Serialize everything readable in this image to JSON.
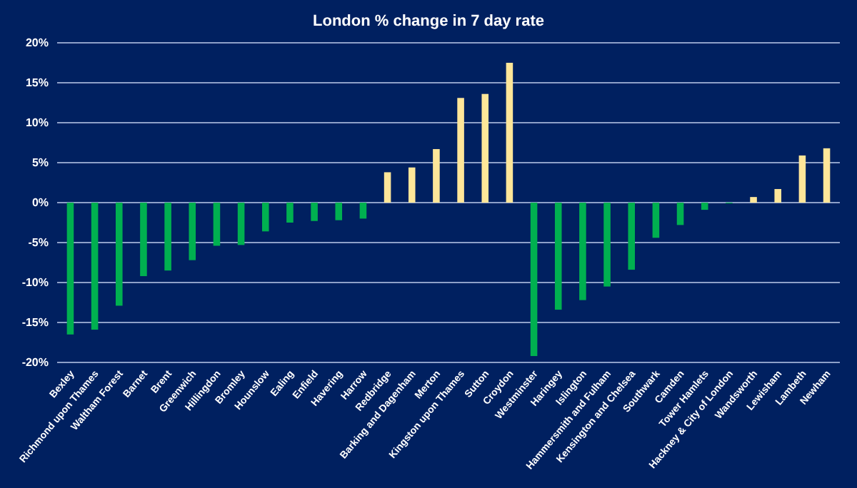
{
  "chart_data": {
    "type": "bar",
    "title": "London % change in 7 day rate",
    "categories": [
      "Bexley",
      "Richmond upon Thames",
      "Waltham Forest",
      "Barnet",
      "Brent",
      "Greenwich",
      "Hillingdon",
      "Bromley",
      "Hounslow",
      "Ealing",
      "Enfield",
      "Havering",
      "Harrow",
      "Redbridge",
      "Barking and Dagenham",
      "Merton",
      "Kingston upon Thames",
      "Sutton",
      "Croydon",
      "Westminster",
      "Haringey",
      "Islington",
      "Hammersmith and Fulham",
      "Kensington and Chelsea",
      "Southwark",
      "Camden",
      "Tower Hamlets",
      "Hackney & City of London",
      "Wandsworth",
      "Lewisham",
      "Lambeth",
      "Newham"
    ],
    "values": [
      -16.5,
      -15.9,
      -12.9,
      -9.2,
      -8.5,
      -7.2,
      -5.4,
      -5.3,
      -3.6,
      -2.5,
      -2.3,
      -2.2,
      -2.0,
      3.8,
      4.4,
      6.7,
      13.1,
      13.6,
      17.5,
      -19.2,
      -13.4,
      -12.2,
      -10.5,
      -8.4,
      -4.4,
      -2.8,
      -0.9,
      -0.1,
      0.7,
      1.7,
      5.9,
      6.8
    ],
    "colors": [
      "#00b050",
      "#00b050",
      "#00b050",
      "#00b050",
      "#00b050",
      "#00b050",
      "#00b050",
      "#00b050",
      "#00b050",
      "#00b050",
      "#00b050",
      "#00b050",
      "#00b050",
      "#ffe699",
      "#ffe699",
      "#ffe699",
      "#ffe699",
      "#ffe699",
      "#ffe699",
      "#00b050",
      "#00b050",
      "#00b050",
      "#00b050",
      "#00b050",
      "#00b050",
      "#00b050",
      "#00b050",
      "#00b050",
      "#ffe699",
      "#ffe699",
      "#ffe699",
      "#ffe699"
    ],
    "ylim": [
      -20,
      20
    ],
    "yticks": [
      {
        "value": -20,
        "label": "-20%"
      },
      {
        "value": -15,
        "label": "-15%"
      },
      {
        "value": -10,
        "label": "-10%"
      },
      {
        "value": -5,
        "label": "-5%"
      },
      {
        "value": 0,
        "label": "0%"
      },
      {
        "value": 5,
        "label": "5%"
      },
      {
        "value": 10,
        "label": "10%"
      },
      {
        "value": 15,
        "label": "15%"
      },
      {
        "value": 20,
        "label": "20%"
      }
    ],
    "grid": "y"
  }
}
